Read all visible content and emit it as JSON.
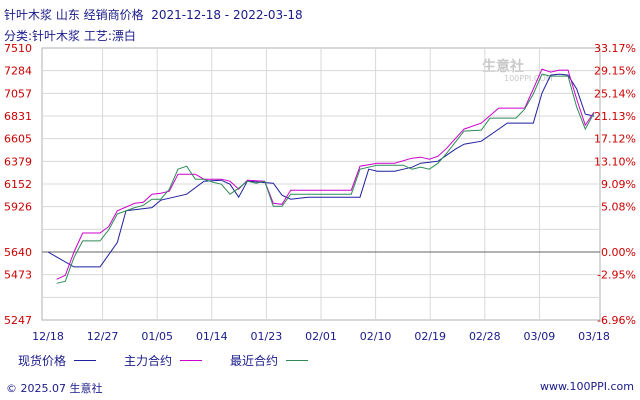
{
  "title": "针叶木浆 山东 经销商价格  2021-12-18 - 2022-03-18",
  "subtitle": "分类:针叶木浆 工艺:漂白",
  "footer_left": "© 2025.07 生意社",
  "footer_right": "www.100PPI.com",
  "watermark": "生意社",
  "watermark_sub": "100PPI.COM",
  "colors": {
    "spot": "#1f1fa0",
    "main": "#cc00cc",
    "recent": "#2e8b57",
    "left_axis": "#cc0000",
    "grid": "#d8d8d8",
    "axis_text": "#1a1a8a"
  },
  "chart_data": {
    "type": "line",
    "x_ticks": [
      "12/18",
      "12/27",
      "01/05",
      "01/14",
      "01/23",
      "02/01",
      "02/10",
      "02/19",
      "02/28",
      "03/09",
      "03/18"
    ],
    "y_left_ticks": [
      "7510",
      "7284",
      "7057",
      "6831",
      "6605",
      "6379",
      "6152",
      "5926",
      "5640",
      "5473",
      "5247"
    ],
    "y_right_ticks": [
      "33.17%",
      "29.15%",
      "25.14%",
      "21.13%",
      "17.12%",
      "13.10%",
      "9.09%",
      "5.08%",
      "0.00%",
      "-2.95%",
      "-6.96%"
    ],
    "ylim": [
      5247,
      7510
    ],
    "baseline": 5640,
    "series": [
      {
        "name": "现货价格",
        "color": "#1f1fa0",
        "values": [
          [
            0,
            5640
          ],
          [
            3,
            5530
          ],
          [
            6,
            5530
          ],
          [
            8,
            5700
          ],
          [
            9,
            5900
          ],
          [
            12,
            5920
          ],
          [
            13,
            5990
          ],
          [
            16,
            6050
          ],
          [
            18,
            6180
          ],
          [
            20,
            6190
          ],
          [
            21,
            6150
          ],
          [
            22,
            6020
          ],
          [
            23,
            6180
          ],
          [
            26,
            6160
          ],
          [
            27,
            6040
          ],
          [
            28,
            6000
          ],
          [
            30,
            6020
          ],
          [
            31,
            6020
          ],
          [
            36,
            6020
          ],
          [
            37,
            6300
          ],
          [
            38,
            6280
          ],
          [
            39,
            6280
          ],
          [
            40,
            6280
          ],
          [
            41,
            6300
          ],
          [
            42,
            6320
          ],
          [
            43,
            6360
          ],
          [
            44,
            6370
          ],
          [
            45,
            6380
          ],
          [
            47,
            6500
          ],
          [
            48,
            6550
          ],
          [
            50,
            6580
          ],
          [
            52,
            6700
          ],
          [
            53,
            6760
          ],
          [
            56,
            6760
          ],
          [
            57,
            7060
          ],
          [
            58,
            7240
          ],
          [
            59,
            7250
          ],
          [
            60,
            7240
          ],
          [
            61,
            7100
          ],
          [
            62,
            6850
          ],
          [
            63,
            6830
          ]
        ]
      },
      {
        "name": "主力合约",
        "color": "#cc00cc",
        "values": [
          [
            1,
            5450
          ],
          [
            2,
            5470
          ],
          [
            3,
            5640
          ],
          [
            4,
            5760
          ],
          [
            5,
            5760
          ],
          [
            6,
            5760
          ],
          [
            7,
            5800
          ],
          [
            8,
            5900
          ],
          [
            10,
            5960
          ],
          [
            11,
            5970
          ],
          [
            12,
            6050
          ],
          [
            13,
            6060
          ],
          [
            14,
            6080
          ],
          [
            15,
            6250
          ],
          [
            17,
            6250
          ],
          [
            18,
            6200
          ],
          [
            19,
            6200
          ],
          [
            20,
            6200
          ],
          [
            21,
            6180
          ],
          [
            22,
            6100
          ],
          [
            23,
            6190
          ],
          [
            25,
            6180
          ],
          [
            26,
            5960
          ],
          [
            27,
            5950
          ],
          [
            28,
            6090
          ],
          [
            34,
            6090
          ],
          [
            35,
            6090
          ],
          [
            36,
            6330
          ],
          [
            38,
            6360
          ],
          [
            40,
            6360
          ],
          [
            42,
            6410
          ],
          [
            43,
            6420
          ],
          [
            44,
            6400
          ],
          [
            45,
            6430
          ],
          [
            46,
            6510
          ],
          [
            48,
            6700
          ],
          [
            50,
            6760
          ],
          [
            52,
            6910
          ],
          [
            54,
            6910
          ],
          [
            55,
            6910
          ],
          [
            56,
            7100
          ],
          [
            57,
            7300
          ],
          [
            58,
            7270
          ],
          [
            59,
            7290
          ],
          [
            60,
            7290
          ],
          [
            61,
            7000
          ],
          [
            62,
            6740
          ],
          [
            63,
            6870
          ]
        ]
      },
      {
        "name": "最近合约",
        "color": "#2e8b57",
        "values": [
          [
            1,
            5430
          ],
          [
            2,
            5440
          ],
          [
            3,
            5600
          ],
          [
            4,
            5710
          ],
          [
            5,
            5710
          ],
          [
            6,
            5710
          ],
          [
            7,
            5780
          ],
          [
            8,
            5880
          ],
          [
            10,
            5920
          ],
          [
            11,
            5940
          ],
          [
            12,
            6000
          ],
          [
            13,
            6000
          ],
          [
            14,
            6100
          ],
          [
            15,
            6300
          ],
          [
            16,
            6330
          ],
          [
            17,
            6200
          ],
          [
            18,
            6200
          ],
          [
            19,
            6170
          ],
          [
            20,
            6150
          ],
          [
            21,
            6050
          ],
          [
            22,
            6110
          ],
          [
            23,
            6180
          ],
          [
            24,
            6160
          ],
          [
            25,
            6180
          ],
          [
            26,
            5930
          ],
          [
            27,
            5930
          ],
          [
            28,
            6050
          ],
          [
            35,
            6050
          ],
          [
            36,
            6300
          ],
          [
            38,
            6340
          ],
          [
            41,
            6340
          ],
          [
            42,
            6300
          ],
          [
            43,
            6320
          ],
          [
            44,
            6300
          ],
          [
            45,
            6360
          ],
          [
            46,
            6460
          ],
          [
            48,
            6680
          ],
          [
            50,
            6690
          ],
          [
            51,
            6810
          ],
          [
            54,
            6810
          ],
          [
            55,
            6900
          ],
          [
            56,
            7050
          ],
          [
            57,
            7250
          ],
          [
            58,
            7230
          ],
          [
            59,
            7230
          ],
          [
            60,
            7230
          ],
          [
            61,
            6920
          ],
          [
            62,
            6700
          ],
          [
            63,
            6860
          ]
        ]
      }
    ],
    "x_max_index": 63,
    "legend": [
      "现货价格",
      "主力合约",
      "最近合约"
    ]
  }
}
